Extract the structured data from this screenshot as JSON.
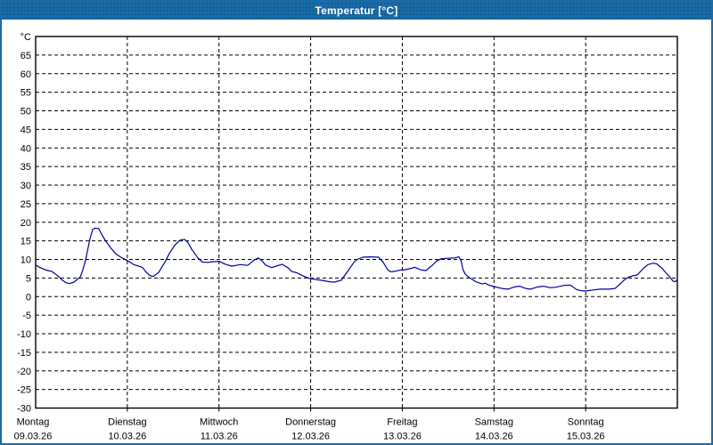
{
  "window": {
    "title": "Temperatur [°C]"
  },
  "colors": {
    "titlebar_bg": "#1B6BA7",
    "titlebar_dots": "#125C95",
    "window_border": "#1B6BA7",
    "plot_bg": "#FFFFFF",
    "plot_border": "#000000",
    "grid": "#000000",
    "text": "#000000",
    "line": "#0000A0"
  },
  "chart_data": {
    "type": "line",
    "title": "Temperatur [°C]",
    "unit_label": "°C",
    "ylabel": "°C",
    "xlabel": "",
    "ylim": [
      -30,
      70
    ],
    "ytick_step": 5,
    "yticks": [
      65,
      60,
      55,
      50,
      45,
      40,
      35,
      30,
      25,
      20,
      15,
      10,
      5,
      0,
      -5,
      -10,
      -15,
      -20,
      -25,
      -30
    ],
    "grid": "dashed",
    "legend": "none",
    "x_hours_span": 168,
    "x_day_tick_hours": [
      0,
      24,
      48,
      72,
      96,
      120,
      144
    ],
    "x_labels": [
      {
        "day": "Montag",
        "date": "09.03.26"
      },
      {
        "day": "Dienstag",
        "date": "10.03.26"
      },
      {
        "day": "Mittwoch",
        "date": "11.03.26"
      },
      {
        "day": "Donnerstag",
        "date": "12.03.26"
      },
      {
        "day": "Freitag",
        "date": "13.03.26"
      },
      {
        "day": "Samstag",
        "date": "14.03.26"
      },
      {
        "day": "Sonntag",
        "date": "15.03.26"
      }
    ],
    "series": [
      {
        "name": "Temperatur",
        "color": "#0000A0",
        "points": [
          [
            0,
            8.5
          ],
          [
            1,
            7.9
          ],
          [
            2.3,
            7.3
          ],
          [
            3.2,
            7.0
          ],
          [
            4.2,
            6.8
          ],
          [
            5.3,
            6.0
          ],
          [
            6.2,
            5.2
          ],
          [
            7,
            4.4
          ],
          [
            8,
            3.7
          ],
          [
            8.9,
            3.5
          ],
          [
            10,
            3.9
          ],
          [
            11,
            4.7
          ],
          [
            11.7,
            5.3
          ],
          [
            12.3,
            7.0
          ],
          [
            13,
            9.5
          ],
          [
            13.6,
            12.5
          ],
          [
            14.2,
            15.5
          ],
          [
            14.9,
            18.0
          ],
          [
            15.5,
            18.4
          ],
          [
            16.5,
            18.3
          ],
          [
            17.1,
            17.1
          ],
          [
            18.3,
            15.0
          ],
          [
            19.8,
            12.9
          ],
          [
            21,
            11.5
          ],
          [
            22.3,
            10.6
          ],
          [
            24,
            9.7
          ],
          [
            25.7,
            8.6
          ],
          [
            27,
            8.2
          ],
          [
            28,
            7.8
          ],
          [
            29,
            6.5
          ],
          [
            29.9,
            5.7
          ],
          [
            30.8,
            5.4
          ],
          [
            32.2,
            6.5
          ],
          [
            33.8,
            9.2
          ],
          [
            35,
            11.6
          ],
          [
            36.4,
            13.8
          ],
          [
            37.8,
            15.2
          ],
          [
            39,
            15.4
          ],
          [
            39.9,
            14.5
          ],
          [
            40.8,
            12.8
          ],
          [
            42.5,
            10.4
          ],
          [
            43.6,
            9.3
          ],
          [
            45,
            9.2
          ],
          [
            46.5,
            9.4
          ],
          [
            48,
            9.5
          ],
          [
            49.7,
            8.7
          ],
          [
            51.3,
            8.2
          ],
          [
            53.7,
            8.6
          ],
          [
            55.5,
            8.4
          ],
          [
            57.2,
            9.8
          ],
          [
            58.3,
            10.4
          ],
          [
            59.3,
            9.6
          ],
          [
            60.2,
            8.5
          ],
          [
            61.8,
            7.8
          ],
          [
            63,
            8.2
          ],
          [
            64.5,
            8.7
          ],
          [
            66,
            7.8
          ],
          [
            67,
            6.8
          ],
          [
            68.4,
            6.4
          ],
          [
            70,
            5.6
          ],
          [
            71.4,
            5.0
          ],
          [
            72,
            4.8
          ],
          [
            74.7,
            4.4
          ],
          [
            77,
            4.0
          ],
          [
            78.2,
            3.9
          ],
          [
            80,
            4.4
          ],
          [
            81.7,
            6.8
          ],
          [
            83.3,
            9.2
          ],
          [
            84,
            9.9
          ],
          [
            85.6,
            10.6
          ],
          [
            87.5,
            10.7
          ],
          [
            89.8,
            10.6
          ],
          [
            91,
            9.2
          ],
          [
            92.2,
            7.2
          ],
          [
            92.9,
            6.7
          ],
          [
            94,
            6.8
          ],
          [
            95.7,
            7.2
          ],
          [
            96,
            7.1
          ],
          [
            98.4,
            7.6
          ],
          [
            99.2,
            7.9
          ],
          [
            100.8,
            7.2
          ],
          [
            102.2,
            7.0
          ],
          [
            103.8,
            8.4
          ],
          [
            105,
            9.6
          ],
          [
            106.2,
            10.2
          ],
          [
            108,
            10.3
          ],
          [
            109.7,
            10.4
          ],
          [
            110.8,
            10.7
          ],
          [
            111.4,
            9.6
          ],
          [
            111.9,
            7.2
          ],
          [
            112.5,
            6.0
          ],
          [
            113.7,
            5.0
          ],
          [
            115.3,
            4.0
          ],
          [
            116.9,
            3.4
          ],
          [
            117.7,
            3.6
          ],
          [
            118.4,
            3.2
          ],
          [
            120,
            2.7
          ],
          [
            122,
            2.2
          ],
          [
            123.7,
            2.0
          ],
          [
            125.3,
            2.6
          ],
          [
            126.7,
            2.8
          ],
          [
            128.3,
            2.2
          ],
          [
            129.5,
            2.0
          ],
          [
            131.4,
            2.6
          ],
          [
            133,
            2.8
          ],
          [
            134.6,
            2.4
          ],
          [
            136,
            2.5
          ],
          [
            138.4,
            3.0
          ],
          [
            140,
            3.1
          ],
          [
            141.6,
            1.9
          ],
          [
            142.8,
            1.6
          ],
          [
            144,
            1.5
          ],
          [
            146.2,
            1.8
          ],
          [
            147.7,
            2.0
          ],
          [
            150,
            2.0
          ],
          [
            151.7,
            2.2
          ],
          [
            152.8,
            3.2
          ],
          [
            154,
            4.4
          ],
          [
            155.2,
            5.2
          ],
          [
            156.3,
            5.6
          ],
          [
            157.5,
            5.8
          ],
          [
            159.1,
            7.6
          ],
          [
            160.3,
            8.6
          ],
          [
            161.7,
            9.0
          ],
          [
            162.6,
            8.8
          ],
          [
            164,
            7.6
          ],
          [
            165,
            6.4
          ],
          [
            166.1,
            5.2
          ],
          [
            166.8,
            4.2
          ],
          [
            167.4,
            4.0
          ],
          [
            168,
            4.5
          ]
        ]
      }
    ]
  }
}
